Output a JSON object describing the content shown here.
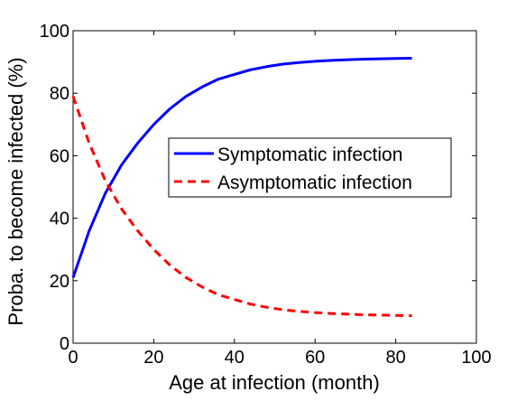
{
  "chart_data": {
    "type": "line",
    "xlabel": "Age at infection (month)",
    "ylabel": "Proba. to become infected (%)",
    "xlim": [
      0,
      100
    ],
    "ylim": [
      0,
      100
    ],
    "xticks": [
      0,
      20,
      40,
      60,
      80,
      100
    ],
    "yticks": [
      0,
      20,
      40,
      60,
      80,
      100
    ],
    "grid": false,
    "legend_position": "center-right",
    "series": [
      {
        "name": "Symptomatic infection",
        "color": "#0000ff",
        "line_style": "solid",
        "x": [
          0,
          4,
          8,
          12,
          16,
          20,
          24,
          28,
          32,
          36,
          40,
          44,
          48,
          52,
          56,
          60,
          64,
          68,
          72,
          76,
          80,
          84
        ],
        "y": [
          21,
          36,
          48,
          57,
          64,
          70,
          75,
          79,
          82,
          84.5,
          86,
          87.5,
          88.5,
          89.3,
          89.8,
          90.2,
          90.5,
          90.7,
          90.9,
          91,
          91.1,
          91.2
        ]
      },
      {
        "name": "Asymptomatic infection",
        "color": "#ff0000",
        "line_style": "dashed",
        "x": [
          0,
          4,
          8,
          12,
          16,
          20,
          24,
          28,
          32,
          36,
          40,
          44,
          48,
          52,
          56,
          60,
          64,
          68,
          72,
          76,
          80,
          84
        ],
        "y": [
          79,
          64,
          52,
          43,
          36,
          30,
          25,
          21,
          18,
          15.5,
          14,
          12.5,
          11.5,
          10.7,
          10.2,
          9.8,
          9.5,
          9.3,
          9.1,
          9,
          8.9,
          8.8
        ]
      }
    ]
  }
}
